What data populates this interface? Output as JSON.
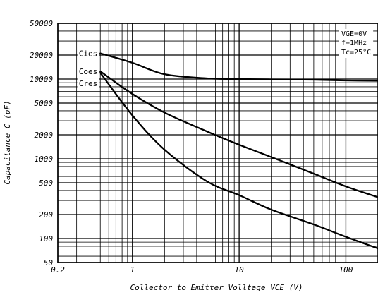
{
  "chart_data": {
    "type": "line",
    "title": "",
    "xlabel": "Collector to Emitter Volltage VCE (V)",
    "ylabel": "Capacitance C (pF)",
    "xscale": "log",
    "yscale": "log",
    "xlim": [
      0.2,
      200
    ],
    "ylim": [
      50,
      50000
    ],
    "grid": true,
    "legend": "none",
    "x_ticks": [
      {
        "value": 0.2,
        "label": "0.2"
      },
      {
        "value": 1,
        "label": "1"
      },
      {
        "value": 10,
        "label": "10"
      },
      {
        "value": 100,
        "label": "100"
      }
    ],
    "y_ticks": [
      {
        "value": 50000,
        "label": "50000"
      },
      {
        "value": 20000,
        "label": "20000"
      },
      {
        "value": 10000,
        "label": "10000"
      },
      {
        "value": 5000,
        "label": "5000"
      },
      {
        "value": 2000,
        "label": "2000"
      },
      {
        "value": 1000,
        "label": "1000"
      },
      {
        "value": 500,
        "label": "500"
      },
      {
        "value": 200,
        "label": "200"
      },
      {
        "value": 100,
        "label": "100"
      },
      {
        "value": 50,
        "label": "50"
      }
    ],
    "conditions": [
      "VGE=0V",
      "f=1MHz",
      "Tc=25°C"
    ],
    "series": [
      {
        "name": "Cies",
        "points": [
          [
            0.5,
            21000
          ],
          [
            1,
            16000
          ],
          [
            2,
            11500
          ],
          [
            5,
            10200
          ],
          [
            10,
            10000
          ],
          [
            20,
            9900
          ],
          [
            50,
            9800
          ],
          [
            100,
            9600
          ],
          [
            200,
            9500
          ]
        ]
      },
      {
        "name": "Coes",
        "points": [
          [
            0.5,
            12500
          ],
          [
            1,
            6500
          ],
          [
            2,
            3800
          ],
          [
            5,
            2200
          ],
          [
            10,
            1500
          ],
          [
            20,
            1050
          ],
          [
            50,
            650
          ],
          [
            100,
            450
          ],
          [
            200,
            330
          ]
        ]
      },
      {
        "name": "Cres",
        "points": [
          [
            0.5,
            12000
          ],
          [
            1,
            3500
          ],
          [
            2,
            1300
          ],
          [
            5,
            520
          ],
          [
            10,
            350
          ],
          [
            20,
            230
          ],
          [
            50,
            150
          ],
          [
            100,
            105
          ],
          [
            200,
            75
          ]
        ]
      }
    ]
  }
}
